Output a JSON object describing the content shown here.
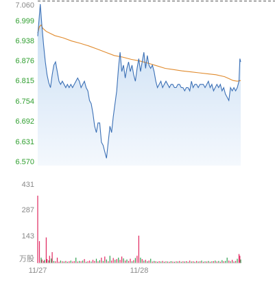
{
  "colors": {
    "price_line": "#3a6fb5",
    "avg_line": "#e08a2c",
    "area_top": "#c6dcf3",
    "area_bottom": "#f4f8fd",
    "axis_text_green": "#2e9e2e",
    "axis_text_gray": "#888888",
    "up_bar": "#e0245e",
    "down_bar": "#2e9e4f",
    "ref_line": "#555555"
  },
  "chart_data": [
    {
      "type": "line",
      "panel": "price",
      "y_ticks": [
        "7.060",
        "6.999",
        "6.938",
        "6.876",
        "6.815",
        "6.754",
        "6.692",
        "6.631",
        "6.570"
      ],
      "ylim": [
        6.54,
        7.06
      ],
      "reference_level": 7.06,
      "x_points": 240,
      "x_ticks": [
        {
          "label": "11/27",
          "index": 0
        },
        {
          "label": "11/28",
          "index": 120
        }
      ],
      "series": [
        {
          "key": "price",
          "values": [
            [
              0,
              6.96
            ],
            [
              3,
              7.06
            ],
            [
              5,
              6.99
            ],
            [
              7,
              6.93
            ],
            [
              9,
              6.88
            ],
            [
              11,
              6.84
            ],
            [
              13,
              6.815
            ],
            [
              15,
              6.8
            ],
            [
              17,
              6.84
            ],
            [
              19,
              6.87
            ],
            [
              21,
              6.88
            ],
            [
              23,
              6.85
            ],
            [
              25,
              6.82
            ],
            [
              27,
              6.81
            ],
            [
              29,
              6.82
            ],
            [
              31,
              6.81
            ],
            [
              33,
              6.8
            ],
            [
              35,
              6.81
            ],
            [
              37,
              6.8
            ],
            [
              39,
              6.81
            ],
            [
              41,
              6.8
            ],
            [
              43,
              6.81
            ],
            [
              45,
              6.82
            ],
            [
              47,
              6.83
            ],
            [
              49,
              6.82
            ],
            [
              51,
              6.8
            ],
            [
              53,
              6.81
            ],
            [
              55,
              6.82
            ],
            [
              57,
              6.8
            ],
            [
              59,
              6.79
            ],
            [
              61,
              6.76
            ],
            [
              63,
              6.75
            ],
            [
              65,
              6.72
            ],
            [
              67,
              6.68
            ],
            [
              69,
              6.66
            ],
            [
              71,
              6.69
            ],
            [
              73,
              6.69
            ],
            [
              75,
              6.63
            ],
            [
              77,
              6.62
            ],
            [
              79,
              6.6
            ],
            [
              81,
              6.58
            ],
            [
              83,
              6.63
            ],
            [
              85,
              6.68
            ],
            [
              87,
              6.66
            ],
            [
              89,
              6.71
            ],
            [
              91,
              6.75
            ],
            [
              93,
              6.79
            ],
            [
              95,
              6.86
            ],
            [
              97,
              6.91
            ],
            [
              99,
              6.85
            ],
            [
              101,
              6.87
            ],
            [
              103,
              6.83
            ],
            [
              105,
              6.86
            ],
            [
              107,
              6.88
            ],
            [
              109,
              6.85
            ],
            [
              111,
              6.87
            ],
            [
              113,
              6.84
            ],
            [
              115,
              6.82
            ],
            [
              117,
              6.86
            ],
            [
              119,
              6.89
            ],
            [
              121,
              6.85
            ],
            [
              123,
              6.88
            ],
            [
              125,
              6.91
            ],
            [
              127,
              6.86
            ],
            [
              129,
              6.9
            ],
            [
              131,
              6.87
            ],
            [
              133,
              6.86
            ],
            [
              135,
              6.87
            ],
            [
              137,
              6.85
            ],
            [
              139,
              6.82
            ],
            [
              141,
              6.8
            ],
            [
              143,
              6.81
            ],
            [
              145,
              6.82
            ],
            [
              147,
              6.8
            ],
            [
              149,
              6.81
            ],
            [
              151,
              6.82
            ],
            [
              153,
              6.81
            ],
            [
              155,
              6.8
            ],
            [
              157,
              6.81
            ],
            [
              159,
              6.81
            ],
            [
              161,
              6.8
            ],
            [
              163,
              6.8
            ],
            [
              165,
              6.81
            ],
            [
              167,
              6.81
            ],
            [
              169,
              6.8
            ],
            [
              171,
              6.8
            ],
            [
              173,
              6.79
            ],
            [
              175,
              6.8
            ],
            [
              177,
              6.8
            ],
            [
              179,
              6.79
            ],
            [
              181,
              6.82
            ],
            [
              183,
              6.8
            ],
            [
              185,
              6.81
            ],
            [
              187,
              6.81
            ],
            [
              189,
              6.8
            ],
            [
              191,
              6.81
            ],
            [
              193,
              6.81
            ],
            [
              195,
              6.81
            ],
            [
              197,
              6.8
            ],
            [
              199,
              6.81
            ],
            [
              201,
              6.82
            ],
            [
              203,
              6.8
            ],
            [
              205,
              6.81
            ],
            [
              207,
              6.79
            ],
            [
              209,
              6.8
            ],
            [
              211,
              6.81
            ],
            [
              213,
              6.8
            ],
            [
              215,
              6.81
            ],
            [
              217,
              6.79
            ],
            [
              219,
              6.8
            ],
            [
              221,
              6.78
            ],
            [
              223,
              6.77
            ],
            [
              225,
              6.76
            ],
            [
              227,
              6.8
            ],
            [
              229,
              6.79
            ],
            [
              231,
              6.8
            ],
            [
              233,
              6.79
            ],
            [
              235,
              6.8
            ],
            [
              237,
              6.82
            ],
            [
              238,
              6.89
            ],
            [
              239,
              6.88
            ]
          ]
        },
        {
          "key": "average",
          "values": [
            [
              0,
              6.97
            ],
            [
              2,
              6.99
            ],
            [
              4,
              6.995
            ],
            [
              6,
              6.985
            ],
            [
              10,
              6.975
            ],
            [
              20,
              6.962
            ],
            [
              30,
              6.955
            ],
            [
              40,
              6.945
            ],
            [
              50,
              6.938
            ],
            [
              60,
              6.93
            ],
            [
              70,
              6.92
            ],
            [
              80,
              6.91
            ],
            [
              90,
              6.9
            ],
            [
              100,
              6.895
            ],
            [
              110,
              6.888
            ],
            [
              120,
              6.883
            ],
            [
              130,
              6.876
            ],
            [
              140,
              6.868
            ],
            [
              150,
              6.86
            ],
            [
              160,
              6.856
            ],
            [
              170,
              6.852
            ],
            [
              180,
              6.849
            ],
            [
              190,
              6.846
            ],
            [
              200,
              6.843
            ],
            [
              210,
              6.84
            ],
            [
              220,
              6.834
            ],
            [
              225,
              6.828
            ],
            [
              230,
              6.822
            ],
            [
              235,
              6.82
            ],
            [
              239,
              6.822
            ]
          ]
        }
      ]
    },
    {
      "type": "bar",
      "panel": "volume",
      "y_ticks": [
        "431",
        "287",
        "143"
      ],
      "unit_label": "万股",
      "ylim": [
        0,
        431
      ],
      "bars": [
        [
          0,
          368,
          "up"
        ],
        [
          2,
          120,
          "up"
        ],
        [
          4,
          30,
          "down"
        ],
        [
          5,
          20,
          "up"
        ],
        [
          7,
          12,
          "up"
        ],
        [
          8,
          18,
          "down"
        ],
        [
          10,
          140,
          "up"
        ],
        [
          11,
          22,
          "up"
        ],
        [
          13,
          15,
          "down"
        ],
        [
          14,
          40,
          "up"
        ],
        [
          16,
          25,
          "down"
        ],
        [
          17,
          60,
          "up"
        ],
        [
          19,
          12,
          "down"
        ],
        [
          21,
          10,
          "up"
        ],
        [
          23,
          30,
          "up"
        ],
        [
          25,
          8,
          "up"
        ],
        [
          27,
          14,
          "down"
        ],
        [
          29,
          10,
          "up"
        ],
        [
          31,
          9,
          "down"
        ],
        [
          33,
          12,
          "up"
        ],
        [
          35,
          8,
          "down"
        ],
        [
          37,
          10,
          "up"
        ],
        [
          39,
          14,
          "down"
        ],
        [
          41,
          9,
          "up"
        ],
        [
          43,
          11,
          "up"
        ],
        [
          45,
          30,
          "down"
        ],
        [
          47,
          9,
          "up"
        ],
        [
          49,
          12,
          "down"
        ],
        [
          51,
          10,
          "up"
        ],
        [
          53,
          14,
          "down"
        ],
        [
          55,
          22,
          "up"
        ],
        [
          57,
          8,
          "down"
        ],
        [
          59,
          10,
          "up"
        ],
        [
          61,
          14,
          "up"
        ],
        [
          63,
          9,
          "down"
        ],
        [
          65,
          18,
          "up"
        ],
        [
          67,
          12,
          "up"
        ],
        [
          69,
          24,
          "down"
        ],
        [
          71,
          10,
          "up"
        ],
        [
          73,
          16,
          "down"
        ],
        [
          75,
          30,
          "up"
        ],
        [
          77,
          12,
          "down"
        ],
        [
          79,
          36,
          "up"
        ],
        [
          81,
          20,
          "down"
        ],
        [
          83,
          10,
          "up"
        ],
        [
          85,
          40,
          "down"
        ],
        [
          87,
          14,
          "up"
        ],
        [
          89,
          28,
          "up"
        ],
        [
          91,
          18,
          "down"
        ],
        [
          93,
          22,
          "up"
        ],
        [
          95,
          30,
          "down"
        ],
        [
          97,
          18,
          "up"
        ],
        [
          99,
          36,
          "up"
        ],
        [
          101,
          26,
          "down"
        ],
        [
          103,
          14,
          "up"
        ],
        [
          105,
          20,
          "down"
        ],
        [
          107,
          12,
          "up"
        ],
        [
          109,
          24,
          "up"
        ],
        [
          111,
          10,
          "down"
        ],
        [
          113,
          16,
          "up"
        ],
        [
          115,
          28,
          "down"
        ],
        [
          117,
          40,
          "up"
        ],
        [
          119,
          150,
          "up"
        ],
        [
          121,
          30,
          "down"
        ],
        [
          123,
          22,
          "up"
        ],
        [
          125,
          14,
          "down"
        ],
        [
          127,
          18,
          "up"
        ],
        [
          129,
          10,
          "down"
        ],
        [
          131,
          14,
          "up"
        ],
        [
          133,
          24,
          "down"
        ],
        [
          135,
          9,
          "up"
        ],
        [
          137,
          12,
          "down"
        ],
        [
          139,
          10,
          "up"
        ],
        [
          141,
          8,
          "down"
        ],
        [
          143,
          11,
          "up"
        ],
        [
          145,
          9,
          "down"
        ],
        [
          147,
          12,
          "up"
        ],
        [
          149,
          8,
          "down"
        ],
        [
          151,
          10,
          "up"
        ],
        [
          153,
          9,
          "down"
        ],
        [
          155,
          8,
          "up"
        ],
        [
          157,
          11,
          "down"
        ],
        [
          159,
          9,
          "up"
        ],
        [
          161,
          8,
          "down"
        ],
        [
          163,
          10,
          "up"
        ],
        [
          165,
          9,
          "down"
        ],
        [
          167,
          12,
          "up"
        ],
        [
          169,
          8,
          "down"
        ],
        [
          171,
          10,
          "up"
        ],
        [
          173,
          9,
          "down"
        ],
        [
          175,
          11,
          "up"
        ],
        [
          177,
          8,
          "down"
        ],
        [
          179,
          14,
          "up"
        ],
        [
          181,
          9,
          "down"
        ],
        [
          183,
          10,
          "up"
        ],
        [
          185,
          8,
          "down"
        ],
        [
          187,
          12,
          "up"
        ],
        [
          189,
          9,
          "down"
        ],
        [
          191,
          10,
          "up"
        ],
        [
          193,
          14,
          "down"
        ],
        [
          195,
          8,
          "up"
        ],
        [
          197,
          10,
          "down"
        ],
        [
          199,
          9,
          "up"
        ],
        [
          201,
          12,
          "down"
        ],
        [
          203,
          8,
          "up"
        ],
        [
          205,
          10,
          "down"
        ],
        [
          207,
          11,
          "up"
        ],
        [
          209,
          14,
          "down"
        ],
        [
          211,
          9,
          "up"
        ],
        [
          213,
          12,
          "down"
        ],
        [
          215,
          8,
          "up"
        ],
        [
          217,
          16,
          "down"
        ],
        [
          219,
          10,
          "up"
        ],
        [
          221,
          12,
          "down"
        ],
        [
          223,
          30,
          "down"
        ],
        [
          225,
          14,
          "up"
        ],
        [
          227,
          10,
          "down"
        ],
        [
          229,
          18,
          "up"
        ],
        [
          231,
          9,
          "down"
        ],
        [
          233,
          12,
          "up"
        ],
        [
          235,
          24,
          "down"
        ],
        [
          237,
          50,
          "up"
        ],
        [
          238,
          40,
          "up"
        ],
        [
          239,
          20,
          "down"
        ]
      ]
    }
  ]
}
